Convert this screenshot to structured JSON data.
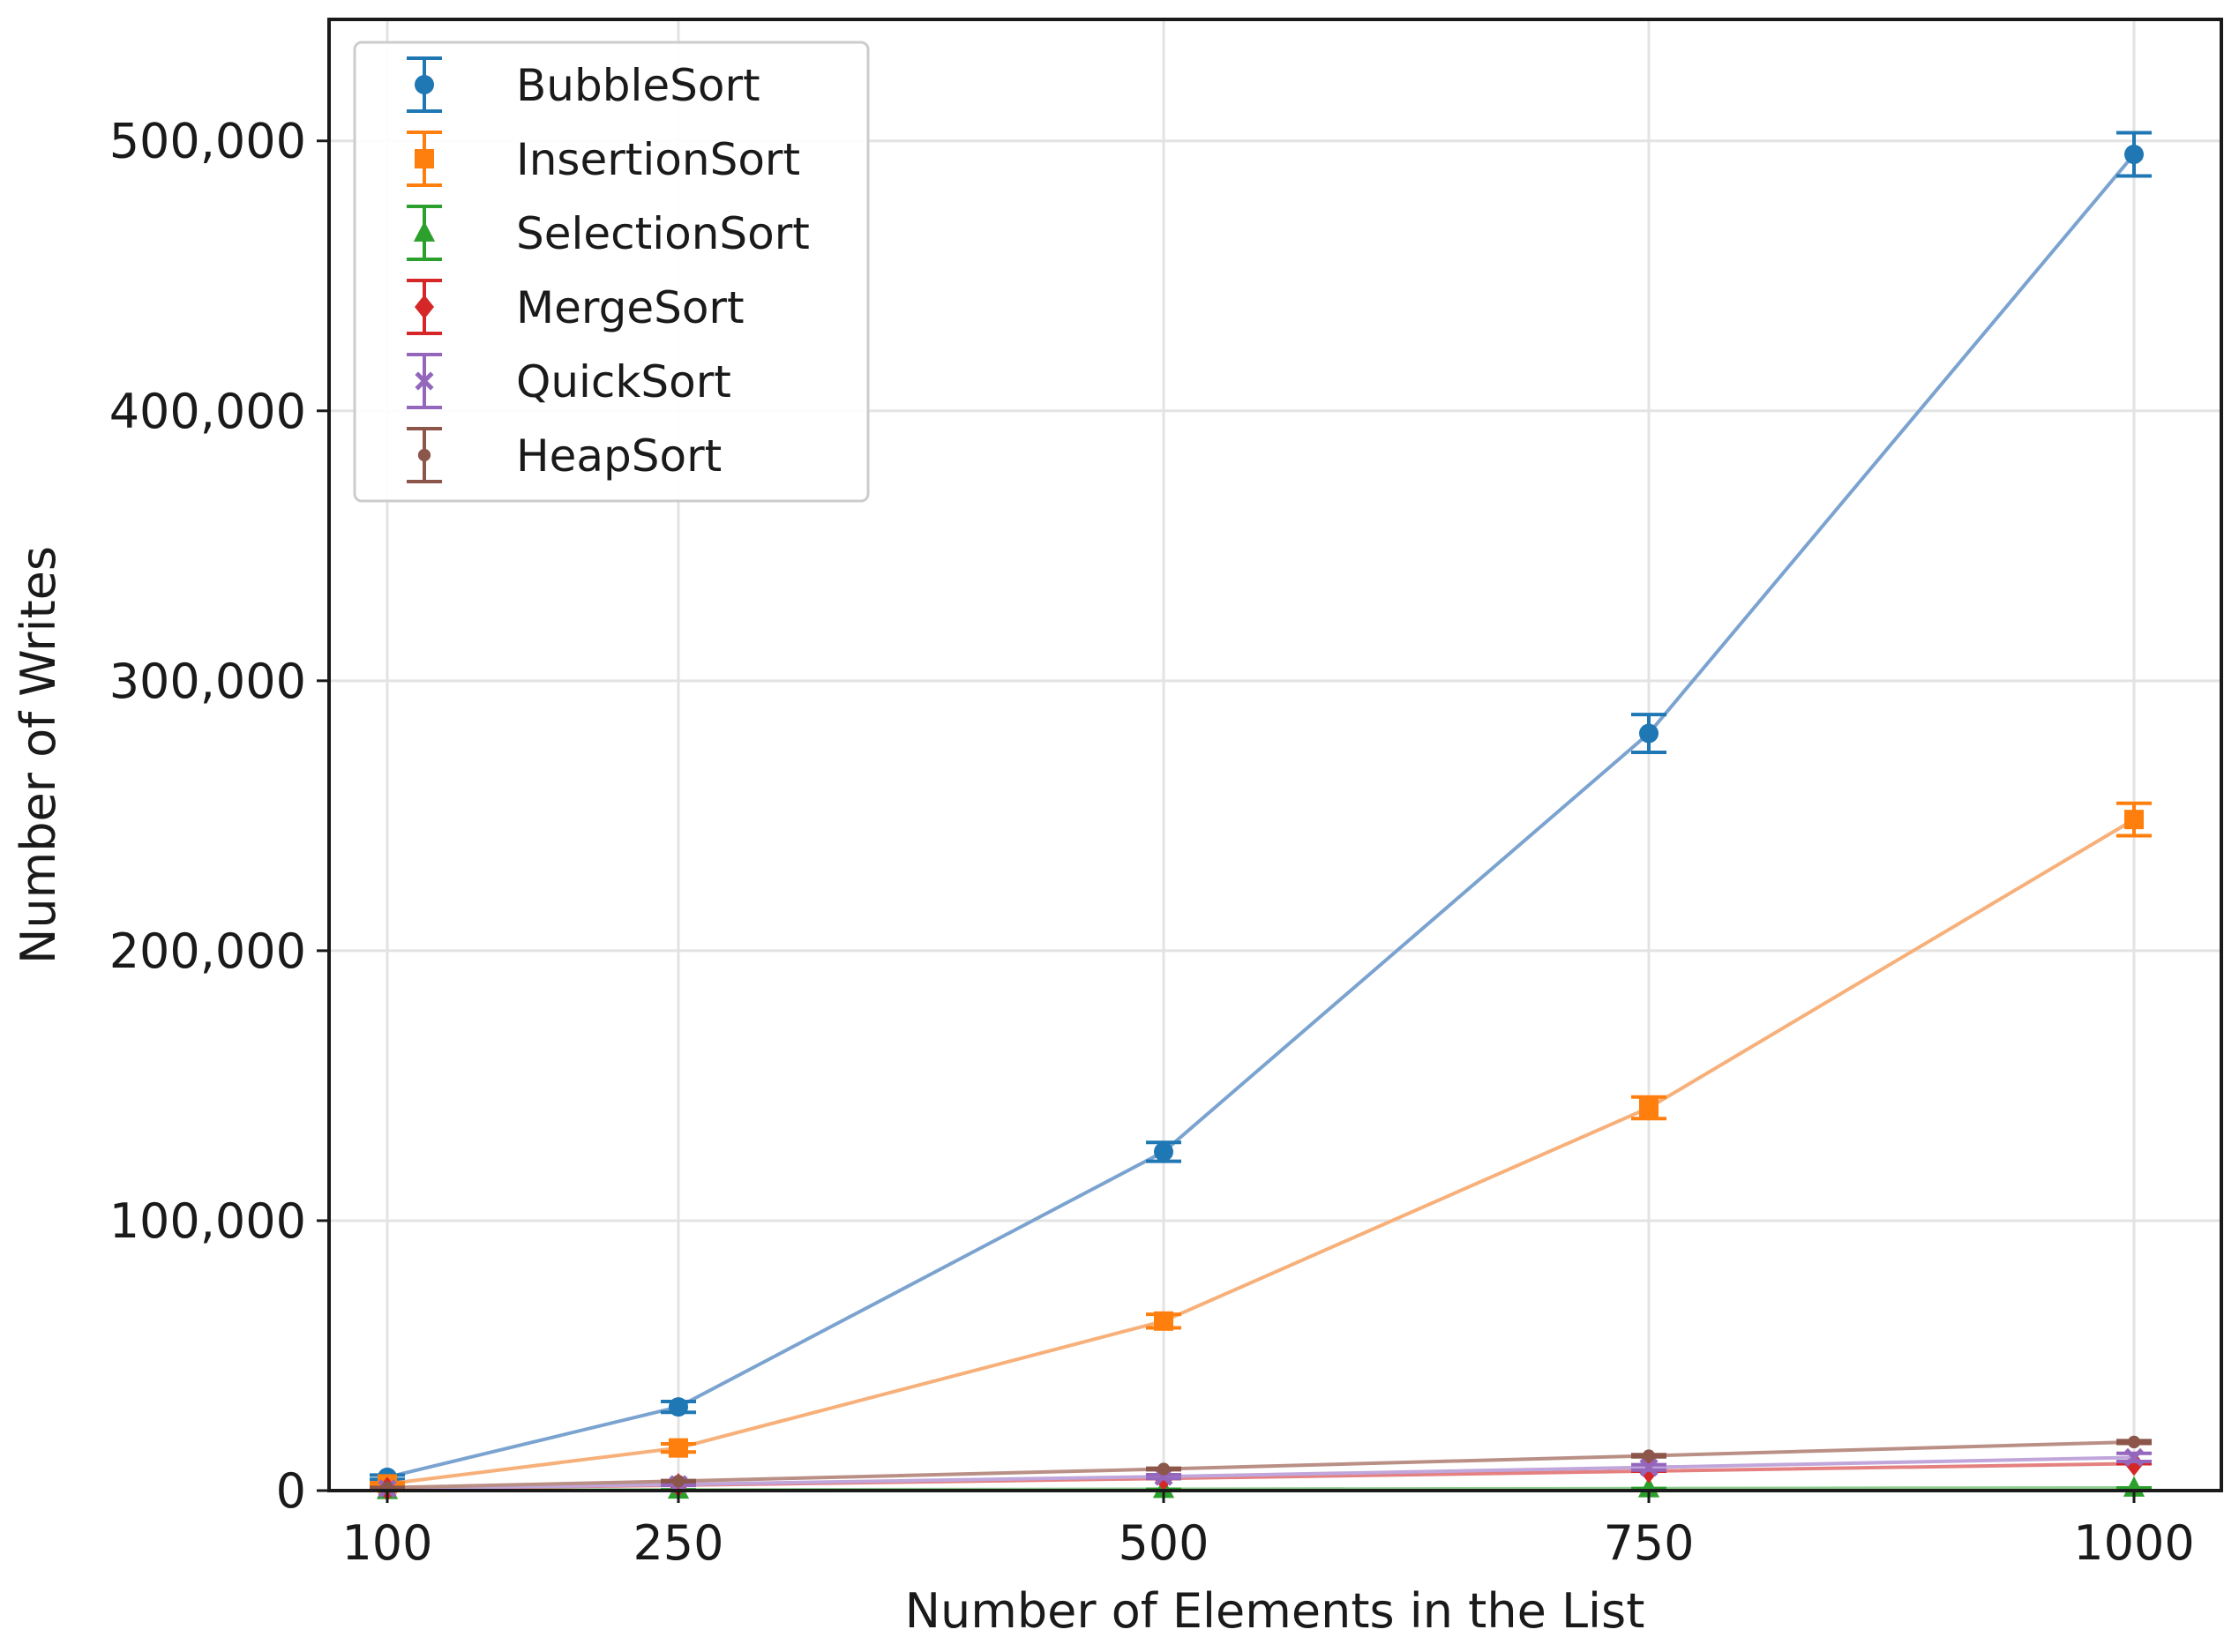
{
  "chart_data": {
    "type": "line",
    "title": "",
    "xlabel": "Number of Elements in the List",
    "ylabel": "Number of Writes",
    "x": [
      100,
      250,
      500,
      750,
      1000
    ],
    "x_tick_labels": [
      "100",
      "250",
      "500",
      "750",
      "1000"
    ],
    "xlim": [
      70,
      1045
    ],
    "ylim": [
      0,
      545000
    ],
    "y_ticks": [
      0,
      100000,
      200000,
      300000,
      400000,
      500000
    ],
    "y_tick_labels": [
      "0",
      "100,000",
      "200,000",
      "300,000",
      "400,000",
      "500,000"
    ],
    "grid": true,
    "legend_position": "top-left",
    "error_bars": true,
    "series": [
      {
        "name": "BubbleSort",
        "color": "#1f77b4",
        "line_color": "#7ba3d0",
        "marker": "circle",
        "values": [
          4950,
          31000,
          125500,
          280500,
          495000
        ],
        "errors": [
          800,
          2000,
          3500,
          7000,
          8000
        ]
      },
      {
        "name": "InsertionSort",
        "color": "#ff7f0e",
        "line_color": "#f7b079",
        "marker": "square",
        "values": [
          2500,
          15800,
          62800,
          141800,
          248600
        ],
        "errors": [
          400,
          1500,
          2500,
          4000,
          6000
        ]
      },
      {
        "name": "SelectionSort",
        "color": "#2ca02c",
        "line_color": "#8fcf8f",
        "marker": "triangle",
        "values": [
          99,
          249,
          499,
          749,
          999
        ],
        "errors": [
          0,
          0,
          0,
          0,
          0
        ]
      },
      {
        "name": "MergeSort",
        "color": "#d62728",
        "line_color": "#e58080",
        "marker": "diamond",
        "values": [
          672,
          1994,
          4488,
          7226,
          9976
        ],
        "errors": [
          0,
          0,
          0,
          0,
          0
        ]
      },
      {
        "name": "QuickSort",
        "color": "#9467bd",
        "line_color": "#c1a6db",
        "marker": "x",
        "values": [
          700,
          2300,
          5200,
          8600,
          12300
        ],
        "errors": [
          200,
          400,
          700,
          1000,
          1500
        ]
      },
      {
        "name": "HeapSort",
        "color": "#8c564b",
        "line_color": "#b98f86",
        "marker": "dot",
        "values": [
          1100,
          3500,
          8000,
          12900,
          18000
        ],
        "errors": [
          100,
          200,
          300,
          400,
          500
        ]
      }
    ]
  }
}
